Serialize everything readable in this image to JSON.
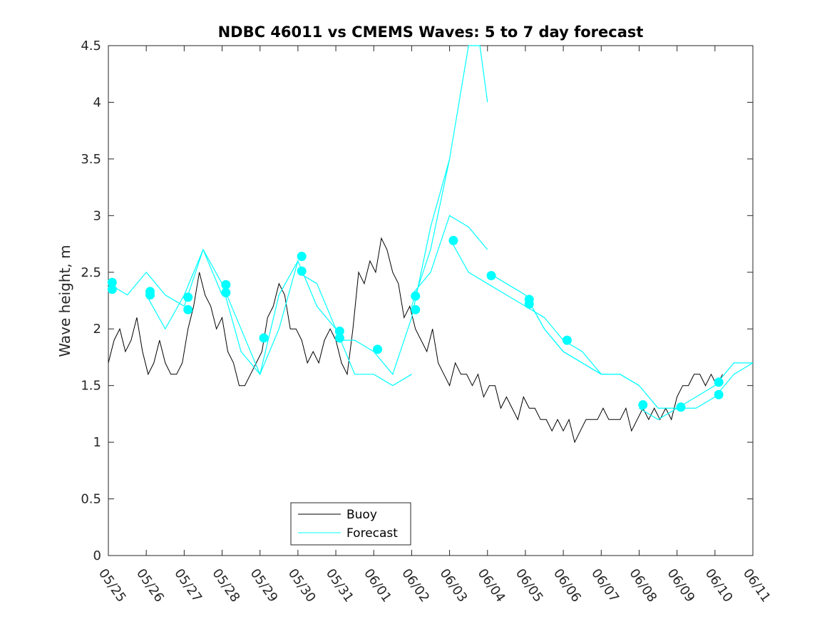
{
  "chart_data": {
    "type": "line",
    "title": "NDBC 46011 vs CMEMS Waves: 5 to 7 day forecast",
    "xlabel": "",
    "ylabel": "Wave height, m",
    "xlim": [
      0,
      17
    ],
    "ylim": [
      0,
      4.5
    ],
    "x_tick_labels": [
      "05/25",
      "05/26",
      "05/27",
      "05/28",
      "05/29",
      "05/30",
      "05/31",
      "06/01",
      "06/02",
      "06/03",
      "06/04",
      "06/05",
      "06/06",
      "06/07",
      "06/08",
      "06/09",
      "06/10",
      "06/11"
    ],
    "y_ticks": [
      0,
      0.5,
      1,
      1.5,
      2,
      2.5,
      3,
      3.5,
      4,
      4.5
    ],
    "y_tick_labels": [
      "0",
      "0.5",
      "1",
      "1.5",
      "2",
      "2.5",
      "3",
      "3.5",
      "4",
      "4.5"
    ],
    "grid": false,
    "legend_position": "bottom-left",
    "colors": {
      "buoy": "#000000",
      "forecast": "#00ffff"
    },
    "series": [
      {
        "name": "Buoy",
        "x": [
          0.0,
          0.15,
          0.3,
          0.45,
          0.6,
          0.75,
          0.9,
          1.05,
          1.2,
          1.35,
          1.5,
          1.65,
          1.8,
          1.95,
          2.1,
          2.25,
          2.4,
          2.55,
          2.7,
          2.85,
          3.0,
          3.15,
          3.3,
          3.45,
          3.6,
          3.75,
          3.9,
          4.05,
          4.2,
          4.35,
          4.5,
          4.65,
          4.8,
          4.95,
          5.1,
          5.25,
          5.4,
          5.55,
          5.7,
          5.85,
          6.0,
          6.15,
          6.3,
          6.45,
          6.6,
          6.75,
          6.9,
          7.05,
          7.2,
          7.35,
          7.5,
          7.65,
          7.8,
          7.95,
          8.1,
          8.25,
          8.4,
          8.55,
          8.7,
          8.85,
          9.0,
          9.15,
          9.3,
          9.45,
          9.6,
          9.75,
          9.9,
          10.05,
          10.2,
          10.35,
          10.5,
          10.65,
          10.8,
          10.95,
          11.1,
          11.25,
          11.4,
          11.55,
          11.7,
          11.85,
          12.0,
          12.15,
          12.3,
          12.45,
          12.6,
          12.75,
          12.9,
          13.05,
          13.2,
          13.35,
          13.5,
          13.65,
          13.8,
          13.95,
          14.1,
          14.25,
          14.4,
          14.55,
          14.7,
          14.85,
          15.0,
          15.15,
          15.3,
          15.45,
          15.6,
          15.75,
          15.9,
          16.05,
          16.2
        ],
        "values": [
          1.7,
          1.9,
          2.0,
          1.8,
          1.9,
          2.1,
          1.8,
          1.6,
          1.7,
          1.9,
          1.7,
          1.6,
          1.6,
          1.7,
          2.0,
          2.2,
          2.5,
          2.3,
          2.2,
          2.0,
          2.1,
          1.8,
          1.7,
          1.5,
          1.5,
          1.6,
          1.7,
          1.8,
          2.1,
          2.2,
          2.4,
          2.3,
          2.0,
          2.0,
          1.9,
          1.7,
          1.8,
          1.7,
          1.9,
          2.0,
          1.9,
          1.7,
          1.6,
          2.0,
          2.5,
          2.4,
          2.6,
          2.5,
          2.8,
          2.7,
          2.5,
          2.4,
          2.1,
          2.2,
          2.0,
          1.9,
          1.8,
          2.0,
          1.7,
          1.6,
          1.5,
          1.7,
          1.6,
          1.6,
          1.5,
          1.6,
          1.4,
          1.5,
          1.5,
          1.3,
          1.4,
          1.3,
          1.2,
          1.4,
          1.3,
          1.3,
          1.2,
          1.2,
          1.1,
          1.2,
          1.1,
          1.2,
          1.0,
          1.1,
          1.2,
          1.2,
          1.2,
          1.3,
          1.2,
          1.2,
          1.2,
          1.3,
          1.1,
          1.2,
          1.3,
          1.2,
          1.3,
          1.2,
          1.3,
          1.2,
          1.4,
          1.5,
          1.5,
          1.6,
          1.6,
          1.5,
          1.6,
          1.5,
          1.6
        ]
      },
      {
        "name": "Forecast",
        "segments": [
          {
            "x": [
              0.0,
              0.5,
              1.0,
              1.5,
              2.0
            ],
            "values": [
              2.4,
              2.3,
              2.5,
              2.3,
              2.2
            ]
          },
          {
            "x": [
              1.0,
              1.5,
              2.0,
              2.5,
              3.0
            ],
            "values": [
              2.3,
              2.0,
              2.3,
              2.7,
              2.3
            ]
          },
          {
            "x": [
              2.0,
              2.5,
              3.0,
              3.5,
              4.0,
              4.5,
              5.0
            ],
            "values": [
              2.2,
              2.7,
              2.4,
              1.8,
              1.6,
              2.3,
              2.6
            ]
          },
          {
            "x": [
              3.0,
              3.5,
              4.0,
              4.5,
              5.0,
              5.5,
              6.0
            ],
            "values": [
              2.4,
              2.0,
              1.6,
              2.0,
              2.6,
              2.2,
              2.0
            ]
          },
          {
            "x": [
              5.0,
              5.5,
              6.0,
              6.5,
              7.0,
              7.5,
              8.0
            ],
            "values": [
              2.5,
              2.4,
              2.0,
              1.6,
              1.6,
              1.5,
              1.6
            ]
          },
          {
            "x": [
              6.0,
              6.5,
              7.0,
              7.5,
              8.0,
              8.5,
              9.0
            ],
            "values": [
              1.9,
              1.9,
              1.8,
              1.6,
              2.1,
              2.9,
              3.5
            ]
          },
          {
            "x": [
              8.0,
              8.5,
              9.0,
              9.5,
              9.8,
              10.0
            ],
            "values": [
              2.2,
              2.7,
              3.5,
              4.5,
              4.5,
              4.0
            ]
          },
          {
            "x": [
              8.0,
              8.5,
              9.0,
              9.5,
              10.0
            ],
            "values": [
              2.3,
              2.5,
              3.0,
              2.9,
              2.7
            ]
          },
          {
            "x": [
              9.0,
              9.5,
              10.0,
              10.5,
              11.0,
              11.5,
              12.0
            ],
            "values": [
              2.8,
              2.5,
              2.4,
              2.3,
              2.2,
              2.1,
              1.9
            ]
          },
          {
            "x": [
              10.0,
              10.5,
              11.0,
              11.5,
              12.0,
              12.5,
              13.0
            ],
            "values": [
              2.5,
              2.4,
              2.3,
              2.0,
              1.8,
              1.7,
              1.6
            ]
          },
          {
            "x": [
              11.0,
              11.5,
              12.0,
              12.5,
              13.0,
              13.5,
              14.0
            ],
            "values": [
              2.3,
              2.0,
              1.8,
              1.7,
              1.6,
              1.6,
              1.5
            ]
          },
          {
            "x": [
              12.0,
              12.5,
              13.0,
              13.5,
              14.0,
              14.5,
              15.0
            ],
            "values": [
              1.9,
              1.8,
              1.6,
              1.6,
              1.5,
              1.3,
              1.3
            ]
          },
          {
            "x": [
              14.0,
              14.5,
              15.0,
              15.5,
              16.0,
              16.5,
              17.0
            ],
            "values": [
              1.3,
              1.2,
              1.3,
              1.4,
              1.5,
              1.7,
              1.7
            ]
          },
          {
            "x": [
              15.0,
              15.5,
              16.0,
              16.5,
              17.0
            ],
            "values": [
              1.3,
              1.3,
              1.4,
              1.6,
              1.7
            ]
          }
        ],
        "markers": [
          {
            "x": 0.1,
            "values": [
              2.41,
              2.35
            ]
          },
          {
            "x": 1.1,
            "values": [
              2.33,
              2.3
            ]
          },
          {
            "x": 2.1,
            "values": [
              2.28,
              2.17
            ]
          },
          {
            "x": 3.1,
            "values": [
              2.39,
              2.32
            ]
          },
          {
            "x": 4.1,
            "values": [
              1.92
            ]
          },
          {
            "x": 5.1,
            "values": [
              2.64,
              2.51
            ]
          },
          {
            "x": 6.1,
            "values": [
              1.98,
              1.92
            ]
          },
          {
            "x": 7.1,
            "values": [
              1.82
            ]
          },
          {
            "x": 8.1,
            "values": [
              2.29,
              2.17
            ]
          },
          {
            "x": 9.1,
            "values": [
              2.78
            ]
          },
          {
            "x": 10.1,
            "values": [
              2.47
            ]
          },
          {
            "x": 11.1,
            "values": [
              2.26,
              2.22
            ]
          },
          {
            "x": 12.1,
            "values": [
              1.9
            ]
          },
          {
            "x": 14.1,
            "values": [
              1.33
            ]
          },
          {
            "x": 15.1,
            "values": [
              1.31
            ]
          },
          {
            "x": 16.1,
            "values": [
              1.53,
              1.42
            ]
          }
        ]
      }
    ]
  }
}
